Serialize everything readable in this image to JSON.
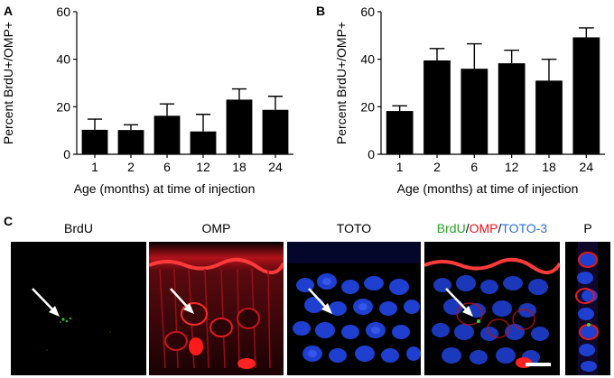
{
  "panels": {
    "A": {
      "letter": "A"
    },
    "B": {
      "letter": "B"
    },
    "C": {
      "letter": "C"
    }
  },
  "chart_data": [
    {
      "type": "bar",
      "panel": "A",
      "title": "",
      "xlabel": "Age (months) at time of injection",
      "ylabel": "Percent BrdU+/OMP+",
      "categories": [
        "1",
        "2",
        "6",
        "12",
        "18",
        "24"
      ],
      "values": [
        10.3,
        10.2,
        16.2,
        9.6,
        23.0,
        18.7
      ],
      "errors": [
        4.5,
        2.2,
        5.0,
        7.2,
        4.5,
        5.7
      ],
      "ylim": [
        0,
        60
      ],
      "yticks": [
        "0",
        "20",
        "40",
        "60"
      ],
      "bar_color": "#000000",
      "grid": false
    },
    {
      "type": "bar",
      "panel": "B",
      "title": "",
      "xlabel": "Age (months) at time of injection",
      "ylabel": "Percent BrdU+/OMP+",
      "categories": [
        "1",
        "2",
        "6",
        "12",
        "18",
        "24"
      ],
      "values": [
        18.2,
        39.5,
        36.0,
        38.3,
        31.0,
        49.2
      ],
      "errors": [
        2.2,
        5.0,
        10.5,
        5.5,
        9.0,
        4.0
      ],
      "ylim": [
        0,
        60
      ],
      "yticks": [
        "0",
        "20",
        "40",
        "60"
      ],
      "bar_color": "#000000",
      "grid": false
    }
  ],
  "micrographs": {
    "brdu_label": "BrdU",
    "omp_label": "OMP",
    "toto_label": "TOTO",
    "merge_label": {
      "brdu": "BrdU",
      "sep1": "/",
      "omp": "OMP",
      "sep2": "/",
      "toto3": "TOTO-3"
    },
    "p_label": "P",
    "colors": {
      "brdu": "#2ca02c",
      "omp": "#e8121b",
      "toto": "#2b6fd6"
    }
  }
}
